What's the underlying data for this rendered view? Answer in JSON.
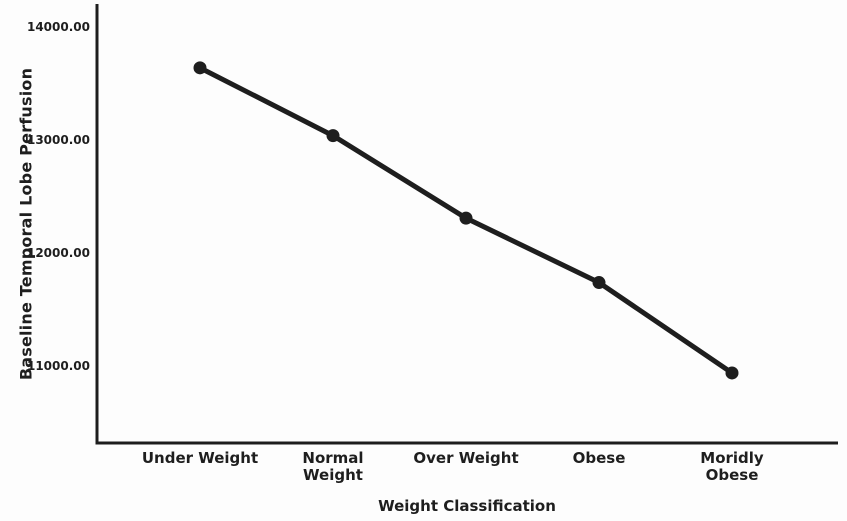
{
  "figure": {
    "background": "#fdfdfd",
    "ink_color": "#1e1e1e"
  },
  "chart_data": {
    "type": "line",
    "title": "",
    "xlabel": "Weight Classification",
    "ylabel": "Baseline Temporal Lobe Perfusion",
    "categories": [
      "Under Weight",
      "Normal Weight",
      "Over Weight",
      "Obese",
      "Moridly Obese"
    ],
    "xtick_display": [
      "Under Weight",
      "Normal\nWeight",
      "Over Weight",
      "Obese",
      "Moridly Obese"
    ],
    "series": [
      {
        "name": "Baseline Temporal Lobe Perfusion",
        "values": [
          13640,
          13040,
          12310,
          11740,
          10940
        ]
      }
    ],
    "yticks": [
      14000,
      13000,
      12000,
      11000
    ],
    "ytick_labels": [
      "14000.00",
      "13000.00",
      "12000.00",
      "11000.00"
    ],
    "ylim": [
      10320,
      14200
    ],
    "grid": false,
    "legend_position": "none",
    "marker": "filled-circle",
    "line_color": "#1e1e1e",
    "axis_color": "#1e1e1e"
  }
}
